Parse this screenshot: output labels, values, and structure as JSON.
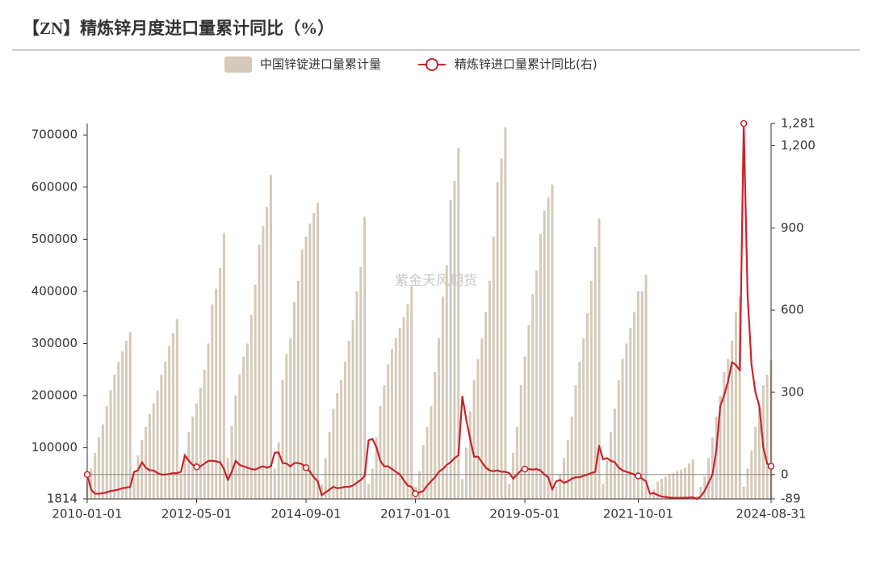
{
  "chart_data": {
    "type": "bar-line",
    "title": "【ZN】精炼锌月度进口量累计同比（%）",
    "watermark": "紫金天风期货",
    "categories": [
      "2010-01-01",
      null,
      null,
      null,
      null,
      null,
      null,
      null,
      null,
      null,
      null,
      null,
      null,
      null,
      null,
      null,
      null,
      null,
      null,
      null,
      null,
      null,
      null,
      null,
      null,
      null,
      null,
      null,
      "2012-05-01",
      null,
      null,
      null,
      null,
      null,
      null,
      null,
      null,
      null,
      null,
      null,
      null,
      null,
      null,
      null,
      null,
      null,
      null,
      null,
      null,
      null,
      null,
      null,
      null,
      null,
      null,
      null,
      "2014-09-01",
      null,
      null,
      null,
      null,
      null,
      null,
      null,
      null,
      null,
      null,
      null,
      null,
      null,
      null,
      null,
      null,
      null,
      null,
      null,
      null,
      null,
      null,
      null,
      null,
      null,
      null,
      null,
      "2017-01-01",
      null,
      null,
      null,
      null,
      null,
      null,
      null,
      null,
      null,
      null,
      null,
      null,
      null,
      null,
      null,
      null,
      null,
      null,
      null,
      null,
      null,
      null,
      null,
      null,
      null,
      null,
      null,
      "2019-05-01",
      null,
      null,
      null,
      null,
      null,
      null,
      null,
      null,
      null,
      null,
      null,
      null,
      null,
      null,
      null,
      null,
      null,
      null,
      null,
      null,
      null,
      null,
      null,
      null,
      null,
      null,
      null,
      null,
      "2021-10-01",
      null,
      null,
      null,
      null,
      null,
      null,
      null,
      null,
      null,
      null,
      null,
      null,
      null,
      null,
      null,
      null,
      null,
      null,
      null,
      null,
      null,
      null,
      null,
      null,
      null,
      null,
      null,
      null,
      null,
      null,
      null,
      null,
      null,
      "2024-08-31"
    ],
    "series": [
      {
        "name": "中国锌锭进口量累计量",
        "color": "#d5cab9",
        "axis": "y",
        "values": [
          35000,
          60000,
          90000,
          120000,
          145000,
          180000,
          210000,
          240000,
          265000,
          285000,
          305000,
          322000,
          55000,
          85000,
          115000,
          140000,
          165000,
          185000,
          210000,
          240000,
          265000,
          295000,
          320000,
          347000,
          50000,
          90000,
          130000,
          160000,
          185000,
          215000,
          250000,
          300000,
          375000,
          405000,
          445000,
          512000,
          80000,
          142000,
          200000,
          240000,
          275000,
          300000,
          355000,
          413000,
          490000,
          525000,
          562000,
          623000,
          60000,
          110000,
          230000,
          280000,
          310000,
          380000,
          420000,
          480000,
          505000,
          530000,
          550000,
          570000,
          30000,
          80000,
          130000,
          175000,
          205000,
          230000,
          265000,
          305000,
          345000,
          400000,
          447000,
          543000,
          30000,
          60000,
          120000,
          180000,
          220000,
          260000,
          290000,
          310000,
          330000,
          350000,
          375000,
          410000,
          25000,
          55000,
          105000,
          140000,
          180000,
          245000,
          310000,
          390000,
          450000,
          575000,
          612000,
          675000,
          40000,
          100000,
          170000,
          230000,
          270000,
          310000,
          360000,
          420000,
          505000,
          610000,
          655000,
          715000,
          30000,
          90000,
          140000,
          220000,
          275000,
          335000,
          395000,
          440000,
          510000,
          555000,
          580000,
          605000,
          25000,
          50000,
          80000,
          115000,
          160000,
          220000,
          265000,
          310000,
          358000,
          420000,
          485000,
          540000,
          30000,
          75000,
          130000,
          175000,
          230000,
          270000,
          300000,
          330000,
          360000,
          400000,
          400000,
          432000,
          10000,
          20000,
          35000,
          40000,
          45000,
          48000,
          52000,
          55000,
          58000,
          62000,
          70000,
          78000,
          8000,
          25000,
          45000,
          80000,
          120000,
          160000,
          200000,
          245000,
          270000,
          305000,
          360000,
          390000,
          25000,
          60000,
          95000,
          140000,
          180000,
          220000,
          240000,
          268000
        ]
      },
      {
        "name": "精炼锌进口量累计同比(右)",
        "color": "#c8232c",
        "axis": "y2",
        "values": [
          0,
          -55,
          -70,
          -70,
          -68,
          -65,
          -60,
          -58,
          -55,
          -50,
          -48,
          -45,
          10,
          15,
          45,
          25,
          15,
          15,
          5,
          0,
          0,
          2,
          5,
          5,
          10,
          70,
          50,
          35,
          28,
          30,
          40,
          50,
          50,
          48,
          45,
          20,
          -20,
          10,
          50,
          35,
          30,
          25,
          20,
          18,
          25,
          30,
          25,
          30,
          80,
          80,
          42,
          40,
          30,
          42,
          42,
          38,
          25,
          10,
          -10,
          -25,
          -75,
          -65,
          -55,
          -45,
          -50,
          -48,
          -45,
          -45,
          -40,
          -30,
          -20,
          -5,
          125,
          130,
          100,
          50,
          30,
          30,
          20,
          10,
          0,
          -20,
          -40,
          -45,
          -70,
          -65,
          -60,
          -40,
          -25,
          -10,
          10,
          20,
          35,
          45,
          60,
          70,
          285,
          200,
          130,
          65,
          65,
          45,
          25,
          15,
          12,
          15,
          10,
          10,
          5,
          -15,
          0,
          15,
          20,
          20,
          18,
          20,
          15,
          0,
          -10,
          -55,
          -25,
          -20,
          -30,
          -25,
          -15,
          -10,
          -10,
          -5,
          0,
          5,
          10,
          105,
          55,
          60,
          50,
          45,
          25,
          15,
          10,
          5,
          0,
          -5,
          -15,
          -25,
          -70,
          -68,
          -75,
          -80,
          -82,
          -84,
          -85,
          -85,
          -85,
          -85,
          -84,
          -83,
          -89,
          -80,
          -60,
          -30,
          0,
          90,
          250,
          290,
          340,
          410,
          400,
          380,
          1281,
          650,
          400,
          300,
          250,
          100,
          40,
          30
        ]
      }
    ],
    "ylim": [
      1814,
      722000
    ],
    "yticks": [
      1814,
      100000,
      200000,
      300000,
      400000,
      500000,
      600000,
      700000
    ],
    "y2lim": [
      -89,
      1281
    ],
    "y2ticks": [
      -89,
      0,
      300,
      600,
      900,
      {
        "value": 1200,
        "label": "1,200"
      },
      {
        "value": 1281,
        "label": "1,281"
      }
    ],
    "legend": "top"
  }
}
